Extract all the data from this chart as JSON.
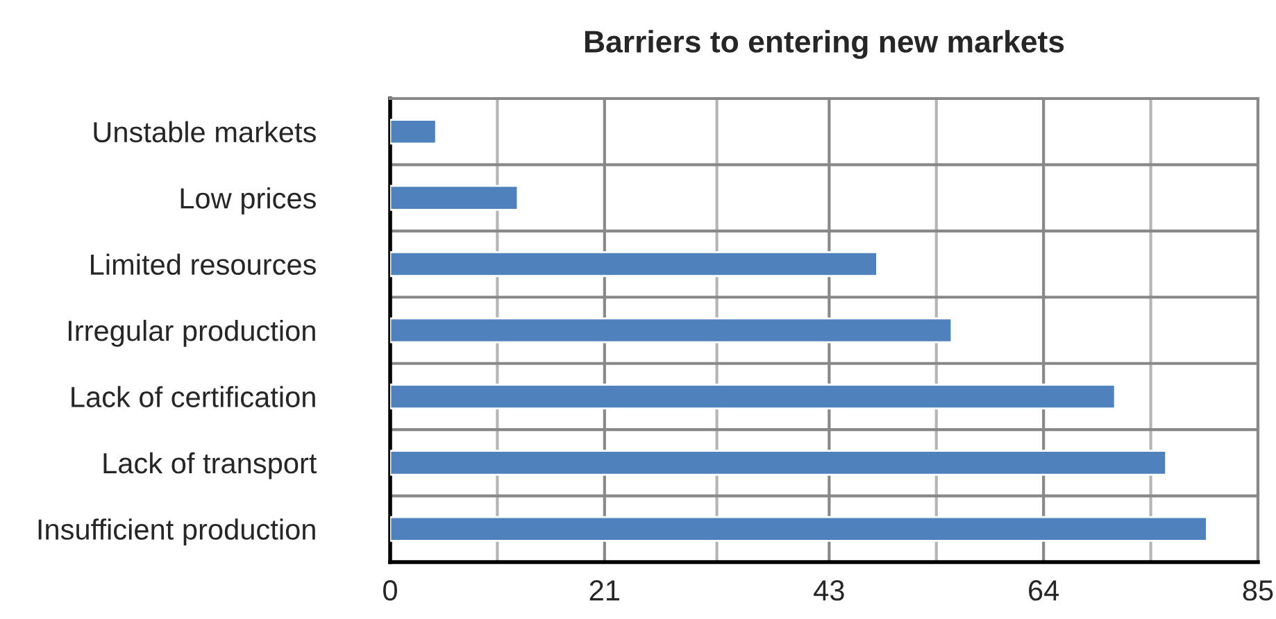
{
  "chart_data": {
    "type": "bar",
    "orientation": "horizontal",
    "title": "Barriers to entering new markets",
    "categories": [
      "Unstable markets",
      "Low prices",
      "Limited resources",
      "Irregular production",
      "Lack of certification",
      "Lack of transport",
      "Insufficient production"
    ],
    "values": [
      4.5,
      12.5,
      47.7,
      55,
      71,
      76,
      80
    ],
    "color": "#4f81bd",
    "xlim": [
      0,
      85
    ],
    "xticks": [
      0,
      {
        "value": 10.5,
        "label": null
      },
      21,
      {
        "value": 32,
        "label": null
      },
      43,
      {
        "value": 53.5,
        "label": null
      },
      64,
      {
        "value": 74.5,
        "label": null
      },
      85
    ],
    "grid": true
  }
}
